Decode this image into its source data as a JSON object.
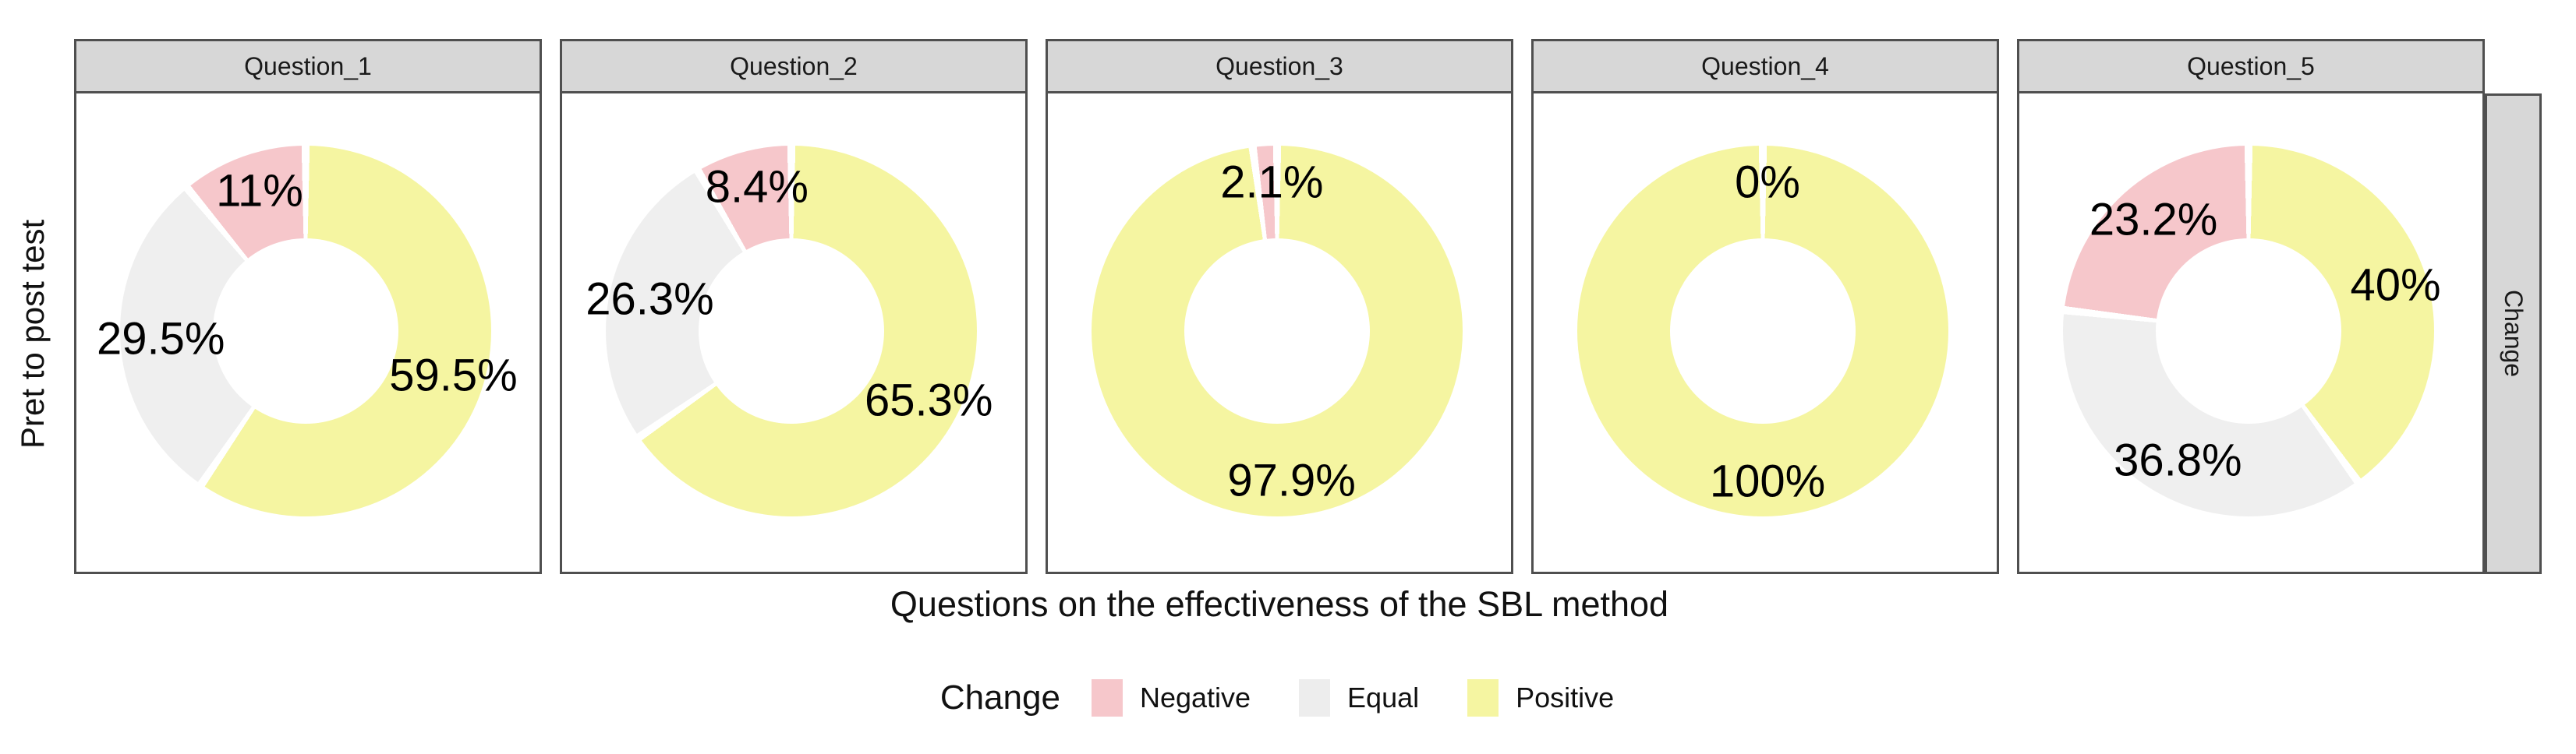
{
  "figure": {
    "y_axis_title": "Pret to post test",
    "x_axis_title": "Questions on the effectiveness of the SBL method",
    "right_strip_label": "Change"
  },
  "legend": {
    "title": "Change",
    "items": [
      {
        "label": "Negative",
        "color": "#F6C7CB"
      },
      {
        "label": "Equal",
        "color": "#EDEDED"
      },
      {
        "label": "Positive",
        "color": "#F5F5A1"
      }
    ]
  },
  "chart_data": {
    "type": "pie",
    "variant": "faceted-donut",
    "title": "",
    "xlabel": "Questions on the effectiveness of the SBL method",
    "ylabel": "Pret to post test",
    "facet_row_label": "Change",
    "legend_position": "bottom",
    "categories": [
      "Negative",
      "Equal",
      "Positive"
    ],
    "colors": {
      "Negative": "#F6C7CB",
      "Equal": "#EFEFEF",
      "Positive": "#F5F5A1"
    },
    "slice_order_clockwise_from_top": [
      "Positive",
      "Equal",
      "Negative"
    ],
    "facets": [
      {
        "title": "Question_1",
        "slices": [
          {
            "category": "Positive",
            "pct": 59.5,
            "label": "59.5%"
          },
          {
            "category": "Equal",
            "pct": 29.5,
            "label": "29.5%"
          },
          {
            "category": "Negative",
            "pct": 11.0,
            "label": "11%"
          }
        ]
      },
      {
        "title": "Question_2",
        "slices": [
          {
            "category": "Positive",
            "pct": 65.3,
            "label": "65.3%"
          },
          {
            "category": "Equal",
            "pct": 26.3,
            "label": "26.3%"
          },
          {
            "category": "Negative",
            "pct": 8.4,
            "label": "8.4%"
          }
        ]
      },
      {
        "title": "Question_3",
        "slices": [
          {
            "category": "Positive",
            "pct": 97.9,
            "label": "97.9%"
          },
          {
            "category": "Negative",
            "pct": 2.1,
            "label": "2.1%"
          }
        ]
      },
      {
        "title": "Question_4",
        "slices": [
          {
            "category": "Positive",
            "pct": 100,
            "label": "100%"
          },
          {
            "category": "Equal",
            "pct": 0,
            "label": "0%"
          }
        ]
      },
      {
        "title": "Question_5",
        "slices": [
          {
            "category": "Positive",
            "pct": 40.0,
            "label": "40%"
          },
          {
            "category": "Equal",
            "pct": 36.8,
            "label": "36.8%"
          },
          {
            "category": "Negative",
            "pct": 23.2,
            "label": "23.2%"
          }
        ]
      }
    ],
    "geometry": {
      "outer_radius_px": 238,
      "inner_radius_px": 119,
      "label_radius_px": 192
    }
  }
}
